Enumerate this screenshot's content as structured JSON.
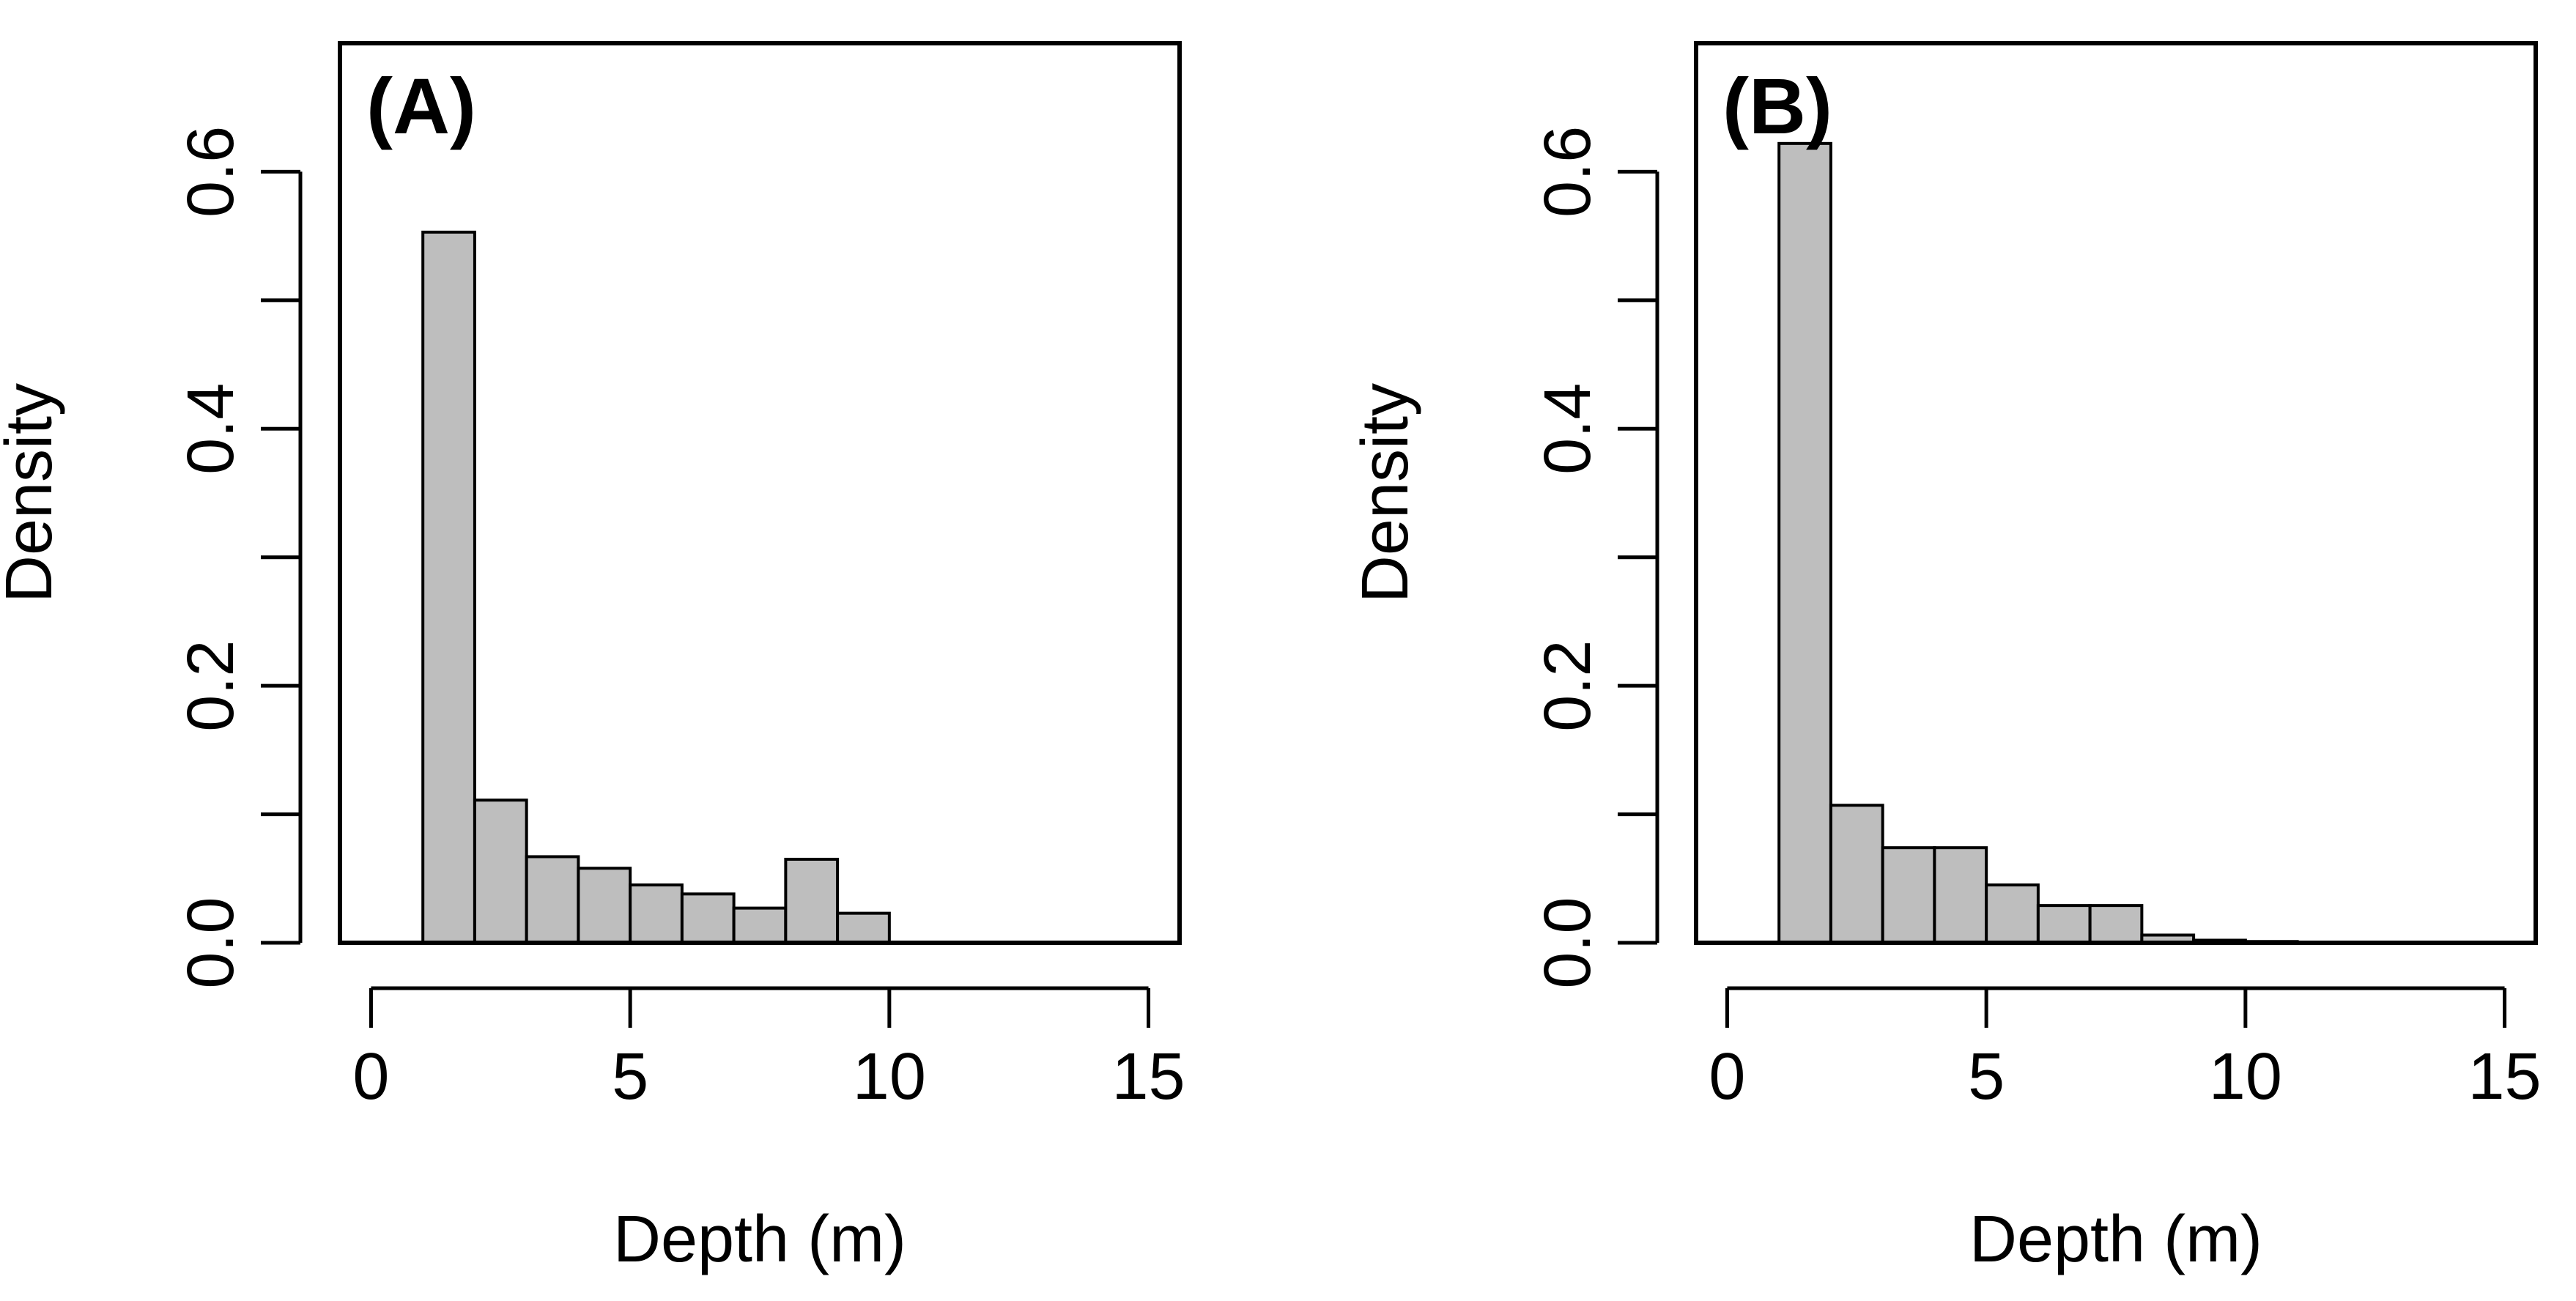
{
  "chart_data": [
    {
      "type": "bar",
      "subtype": "histogram",
      "panel_label": "(A)",
      "xlabel": "Depth (m)",
      "ylabel": "Density",
      "xlim": [
        -0.6,
        15.6
      ],
      "ylim": [
        0,
        0.7
      ],
      "x_ticks": [
        0,
        5,
        10,
        15
      ],
      "x_tick_labels": [
        "0",
        "5",
        "10",
        "15"
      ],
      "y_ticks": [
        0,
        0.1,
        0.2,
        0.3,
        0.4,
        0.5,
        0.6
      ],
      "y_tick_labels": [
        "0.0",
        "",
        "0.2",
        "",
        "0.4",
        "",
        "0.6"
      ],
      "bin_edges": [
        1,
        2,
        3,
        4,
        5,
        6,
        7,
        8,
        9,
        10
      ],
      "values": [
        0.553,
        0.111,
        0.067,
        0.058,
        0.045,
        0.038,
        0.027,
        0.065,
        0.023
      ],
      "bar_color": "#bebebe",
      "edge_color": "#000000",
      "grid": false
    },
    {
      "type": "bar",
      "subtype": "histogram",
      "panel_label": "(B)",
      "xlabel": "Depth (m)",
      "ylabel": "Density",
      "xlim": [
        -0.6,
        15.6
      ],
      "ylim": [
        0,
        0.7
      ],
      "x_ticks": [
        0,
        5,
        10,
        15
      ],
      "x_tick_labels": [
        "0",
        "5",
        "10",
        "15"
      ],
      "y_ticks": [
        0,
        0.1,
        0.2,
        0.3,
        0.4,
        0.5,
        0.6
      ],
      "y_tick_labels": [
        "0.0",
        "",
        "0.2",
        "",
        "0.4",
        "",
        "0.6"
      ],
      "bin_edges": [
        1,
        2,
        3,
        4,
        5,
        6,
        7,
        8,
        9,
        10,
        11
      ],
      "values": [
        0.622,
        0.107,
        0.074,
        0.074,
        0.045,
        0.029,
        0.029,
        0.006,
        0.002,
        0.001
      ],
      "bar_color": "#bebebe",
      "edge_color": "#000000",
      "grid": false
    }
  ]
}
